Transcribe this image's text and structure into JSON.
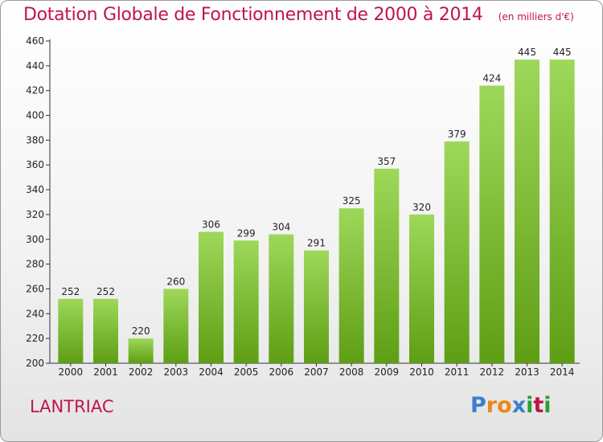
{
  "title": "Dotation Globale de Fonctionnement de 2000 à 2014",
  "unit": "(en milliers d'€)",
  "place": "LANTRIAC",
  "logo": {
    "letters": [
      "P",
      "r",
      "o",
      "x",
      "i",
      "t",
      "i"
    ],
    "colors": [
      "#3a7fd0",
      "#e8891a",
      "#e8891a",
      "#3a7fd0",
      "#2a9e3c",
      "#c0144b",
      "#2a9e3c"
    ]
  },
  "colors": {
    "bar_top": "#9ed85a",
    "bar_bottom": "#5e9e14",
    "title": "#c0144b"
  },
  "chart_data": {
    "type": "bar",
    "categories": [
      "2000",
      "2001",
      "2002",
      "2003",
      "2004",
      "2005",
      "2006",
      "2007",
      "2008",
      "2009",
      "2010",
      "2011",
      "2012",
      "2013",
      "2014"
    ],
    "values": [
      252,
      252,
      220,
      260,
      306,
      299,
      304,
      291,
      325,
      357,
      320,
      379,
      424,
      445,
      445
    ],
    "ylim": [
      200,
      460
    ],
    "yticks": [
      200,
      220,
      240,
      260,
      280,
      300,
      320,
      340,
      360,
      380,
      400,
      420,
      440,
      460
    ],
    "grid": false
  }
}
